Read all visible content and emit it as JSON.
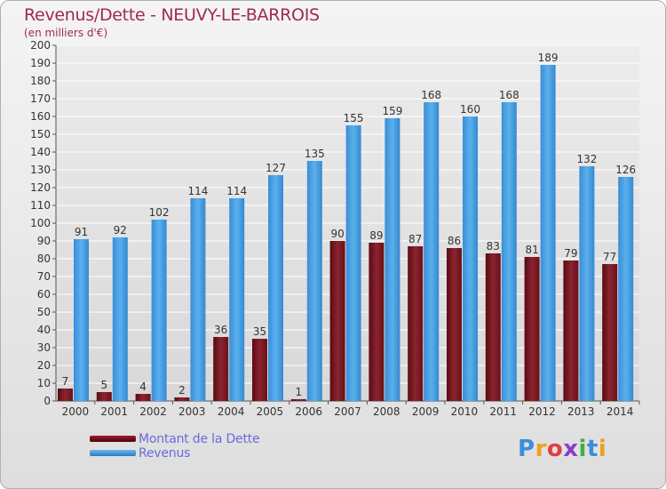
{
  "header": {
    "title": "Revenus/Dette - NEUVY-LE-BARROIS",
    "subtitle": "(en milliers d'€)"
  },
  "colors": {
    "dette": "#7a1420",
    "revenus": "#4a9ee0",
    "axis_text": "#333333",
    "title": "#a0285a",
    "legend_text": "#6a6adf"
  },
  "chart_data": {
    "type": "bar",
    "title": "Revenus/Dette - NEUVY-LE-BARROIS",
    "ylabel": "(en milliers d'€)",
    "xlabel": "",
    "ylim": [
      0,
      200
    ],
    "ytick_step": 10,
    "categories": [
      "2000",
      "2001",
      "2002",
      "2003",
      "2004",
      "2005",
      "2006",
      "2007",
      "2008",
      "2009",
      "2010",
      "2011",
      "2012",
      "2013",
      "2014"
    ],
    "series": [
      {
        "name": "Montant de la Dette",
        "values": [
          7,
          5,
          4,
          2,
          36,
          35,
          1,
          90,
          89,
          87,
          86,
          83,
          81,
          79,
          77
        ]
      },
      {
        "name": "Revenus",
        "values": [
          91,
          92,
          102,
          114,
          114,
          127,
          135,
          155,
          159,
          168,
          160,
          168,
          189,
          132,
          126
        ]
      }
    ],
    "legend_position": "bottom-left"
  },
  "legend": {
    "items": [
      {
        "label": "Montant de la Dette"
      },
      {
        "label": "Revenus"
      }
    ]
  },
  "logo": {
    "letters": [
      "P",
      "r",
      "o",
      "x",
      "i",
      "t",
      "i"
    ]
  }
}
